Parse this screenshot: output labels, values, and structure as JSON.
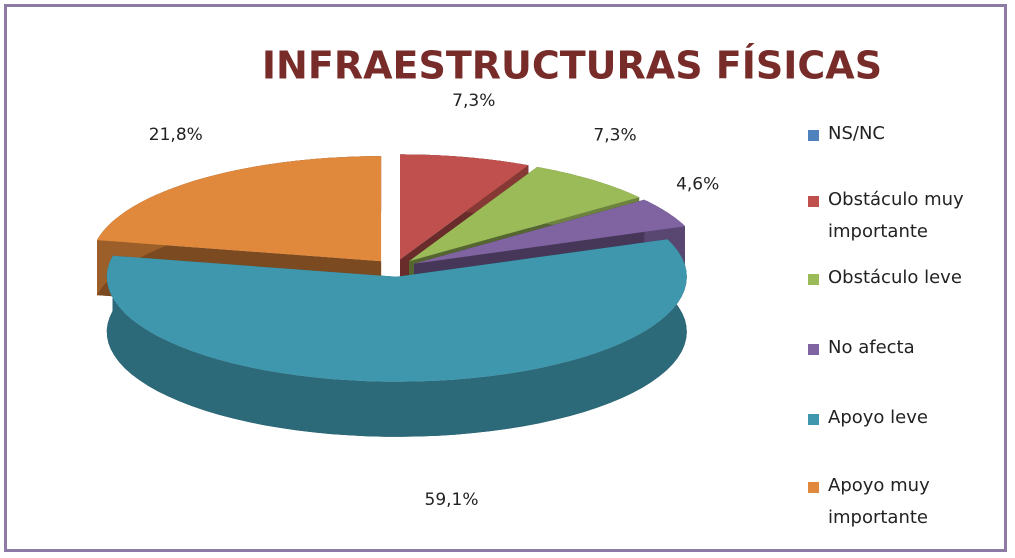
{
  "chart_data": {
    "type": "pie",
    "title": "INFRAESTRUCTURAS FÍSICAS",
    "categories": [
      "NS/NC",
      "Obstáculo muy importante",
      "Obstáculo leve",
      "No afecta",
      "Apoyo leve",
      "Apoyo muy importante"
    ],
    "values": [
      0,
      7.3,
      7.3,
      4.6,
      59.1,
      21.8
    ],
    "value_labels": [
      null,
      "7,3%",
      "7,3%",
      "4,6%",
      "59,1%",
      "21,8%"
    ],
    "colors": [
      "#4f81bd",
      "#c0504d",
      "#9bbb59",
      "#8064a2",
      "#3f97ad",
      "#e0883c"
    ],
    "legend": "right"
  }
}
